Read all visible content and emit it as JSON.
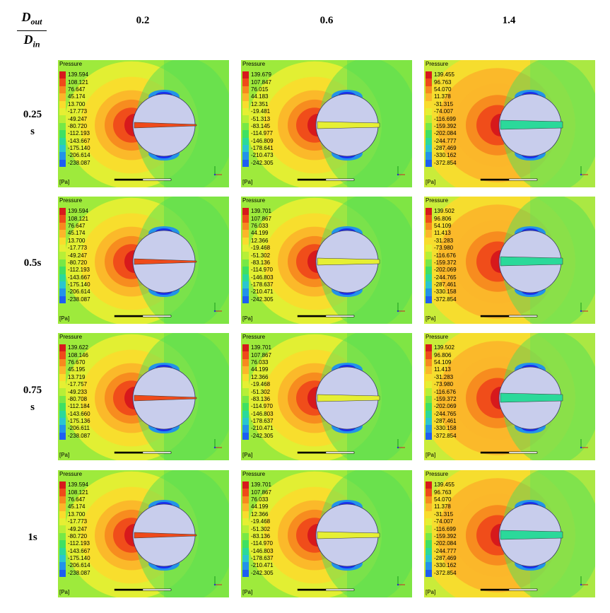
{
  "header": {
    "ratio_numerator": "D",
    "ratio_numerator_sub": "out",
    "ratio_denominator": "D",
    "ratio_denominator_sub": "in"
  },
  "columns": [
    "0.2",
    "0.6",
    "1.4"
  ],
  "rows": [
    {
      "line1": "0.25",
      "line2": "s"
    },
    {
      "line1": "0.5s",
      "line2": ""
    },
    {
      "line1": "0.75",
      "line2": "s"
    },
    {
      "line1": "1s",
      "line2": ""
    }
  ],
  "legend_title": "Pressure",
  "unit": "[Pa]",
  "legend_colors": [
    "#d7191c",
    "#ef4a1a",
    "#f7891f",
    "#fbb62a",
    "#f9dc2d",
    "#e6ef33",
    "#b7ef37",
    "#77e846",
    "#3fe062",
    "#2bd99a",
    "#2ac6cf",
    "#2293e9",
    "#1d5ef2",
    "#1a2ef0"
  ],
  "panels": [
    {
      "id": "r1c1",
      "levels": [
        "139.594",
        "108.121",
        "76.647",
        "45.174",
        "13.700",
        "-17.773",
        "-49.247",
        "-80.720",
        "-112.193",
        "-143.667",
        "-175.140",
        "-206.614",
        "-238.087"
      ]
    },
    {
      "id": "r1c2",
      "levels": [
        "139.679",
        "107.847",
        "76.015",
        "44.183",
        "12.351",
        "-19.481",
        "-51.313",
        "-83.145",
        "-114.977",
        "-146.809",
        "-178.641",
        "-210.473",
        "-242.305"
      ]
    },
    {
      "id": "r1c3",
      "levels": [
        "139.455",
        "96.763",
        "54.070",
        "11.378",
        "-31.315",
        "-74.007",
        "-116.699",
        "-159.392",
        "-202.084",
        "-244.777",
        "-287.469",
        "-330.162",
        "-372.854"
      ]
    },
    {
      "id": "r2c1",
      "levels": [
        "139.594",
        "108.121",
        "76.647",
        "45.174",
        "13.700",
        "-17.773",
        "-49.247",
        "-80.720",
        "-112.193",
        "-143.667",
        "-175.140",
        "-206.614",
        "-238.087"
      ]
    },
    {
      "id": "r2c2",
      "levels": [
        "139.701",
        "107.867",
        "76.033",
        "44.199",
        "12.366",
        "-19.468",
        "-51.302",
        "-83.136",
        "-114.970",
        "-146.803",
        "-178.637",
        "-210.471",
        "-242.305"
      ]
    },
    {
      "id": "r2c3",
      "levels": [
        "139.502",
        "96.806",
        "54.109",
        "11.413",
        "-31.283",
        "-73.980",
        "-116.676",
        "-159.372",
        "-202.069",
        "-244.765",
        "-287.461",
        "-330.158",
        "-372.854"
      ]
    },
    {
      "id": "r3c1",
      "levels": [
        "139.622",
        "108.146",
        "76.670",
        "45.195",
        "13.719",
        "-17.757",
        "-49.233",
        "-80.708",
        "-112.184",
        "-143.660",
        "-175.136",
        "-206.611",
        "-238.087"
      ]
    },
    {
      "id": "r3c2",
      "levels": [
        "139.701",
        "107.867",
        "76.033",
        "44.199",
        "12.366",
        "-19.468",
        "-51.302",
        "-83.136",
        "-114.970",
        "-146.803",
        "-178.637",
        "-210.471",
        "-242.305"
      ]
    },
    {
      "id": "r3c3",
      "levels": [
        "139.502",
        "96.806",
        "54.109",
        "11.413",
        "-31.283",
        "-73.980",
        "-116.676",
        "-159.372",
        "-202.069",
        "-244.765",
        "-287.461",
        "-330.158",
        "-372.854"
      ]
    },
    {
      "id": "r4c1",
      "levels": [
        "139.594",
        "108.121",
        "76.647",
        "45.174",
        "13.700",
        "-17.773",
        "-49.247",
        "-80.720",
        "-112.193",
        "-143.667",
        "-175.140",
        "-206.614",
        "-238.087"
      ]
    },
    {
      "id": "r4c2",
      "levels": [
        "139.701",
        "107.867",
        "76.033",
        "44.199",
        "12.366",
        "-19.468",
        "-51.302",
        "-83.136",
        "-114.970",
        "-146.803",
        "-178.637",
        "-210.471",
        "-242.305"
      ]
    },
    {
      "id": "r4c3",
      "levels": [
        "139.455",
        "96.763",
        "54.070",
        "11.378",
        "-31.315",
        "-74.007",
        "-116.699",
        "-159.392",
        "-202.084",
        "-244.777",
        "-287.469",
        "-330.162",
        "-372.854"
      ]
    }
  ]
}
